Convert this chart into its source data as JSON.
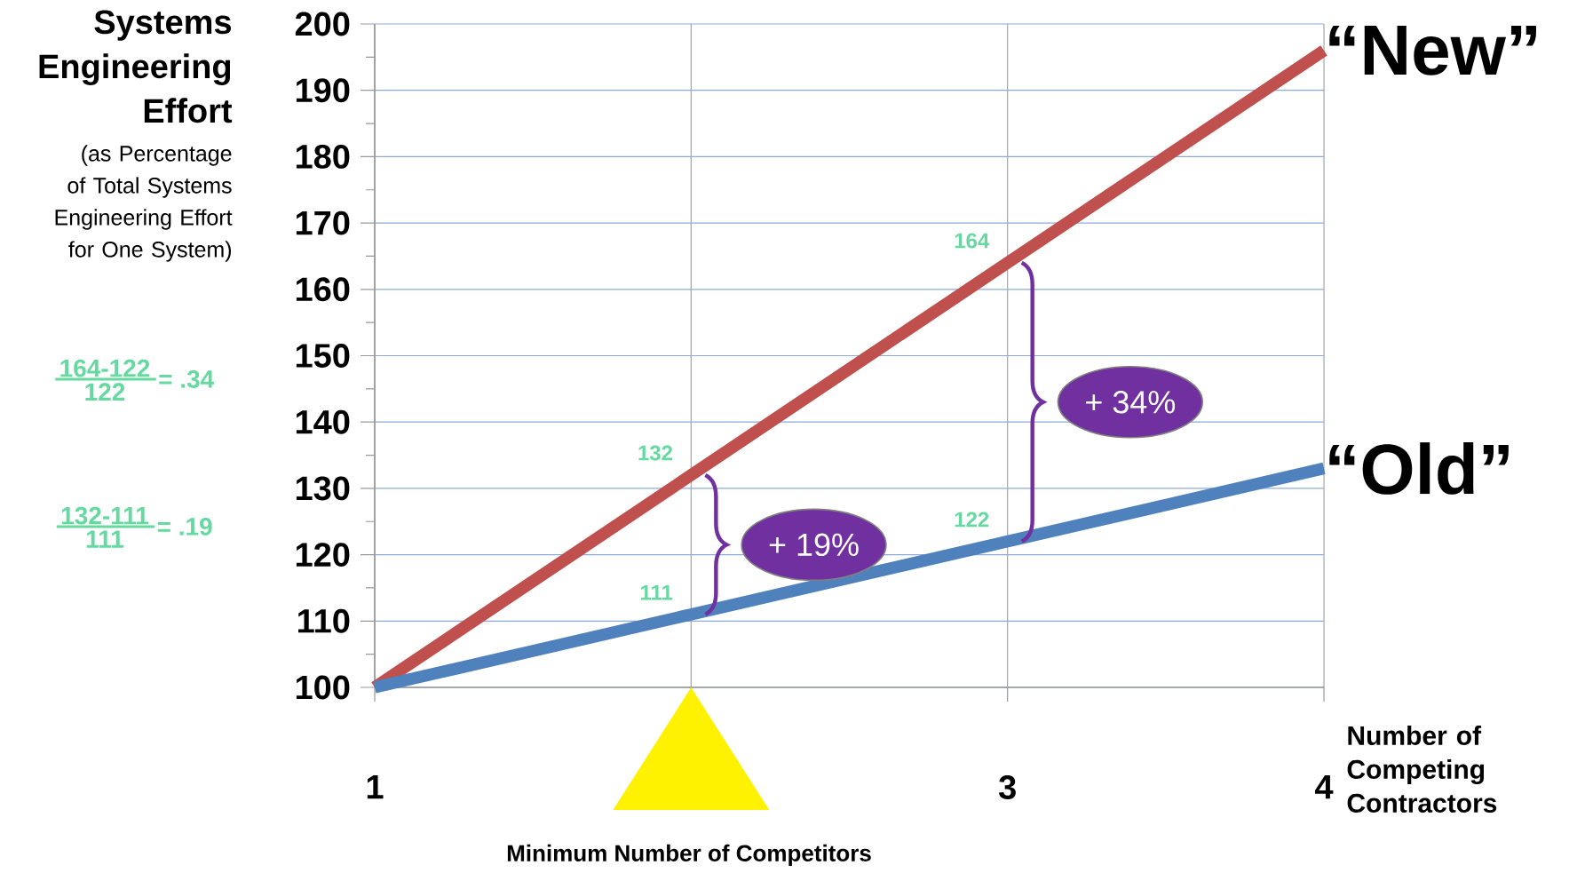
{
  "chart_data": {
    "type": "line",
    "ylabel": "Systems Engineering Effort",
    "xlabel": "Number of Competing Contractors",
    "x": [
      1,
      2,
      3,
      4
    ],
    "xlim": [
      1,
      4
    ],
    "xticks": [
      1,
      {
        "value": 2,
        "label": null
      },
      3,
      4
    ],
    "ylim": [
      100,
      200
    ],
    "yticks": [
      100,
      110,
      120,
      130,
      140,
      150,
      160,
      170,
      180,
      190,
      200
    ],
    "grid": true,
    "marker": "none",
    "line_style": "solid",
    "series": [
      {
        "name": "“New”",
        "color": "#c0504d",
        "values": [
          100,
          132,
          164,
          196
        ],
        "value_labels": [
          null,
          "132",
          "164",
          null
        ]
      },
      {
        "name": "“Old”",
        "color": "#4f81bd",
        "values": [
          100,
          111,
          122,
          133
        ],
        "value_labels": [
          null,
          "111",
          "122",
          null
        ]
      }
    ],
    "annotations": [
      "(as Percentage of Total Systems Engineering Effort for One System)",
      "+ 19%",
      "+ 34%",
      "164-122",
      "122",
      "= .34",
      "132-111",
      "111",
      "= .19",
      "Minimum Number of Competitors"
    ]
  }
}
